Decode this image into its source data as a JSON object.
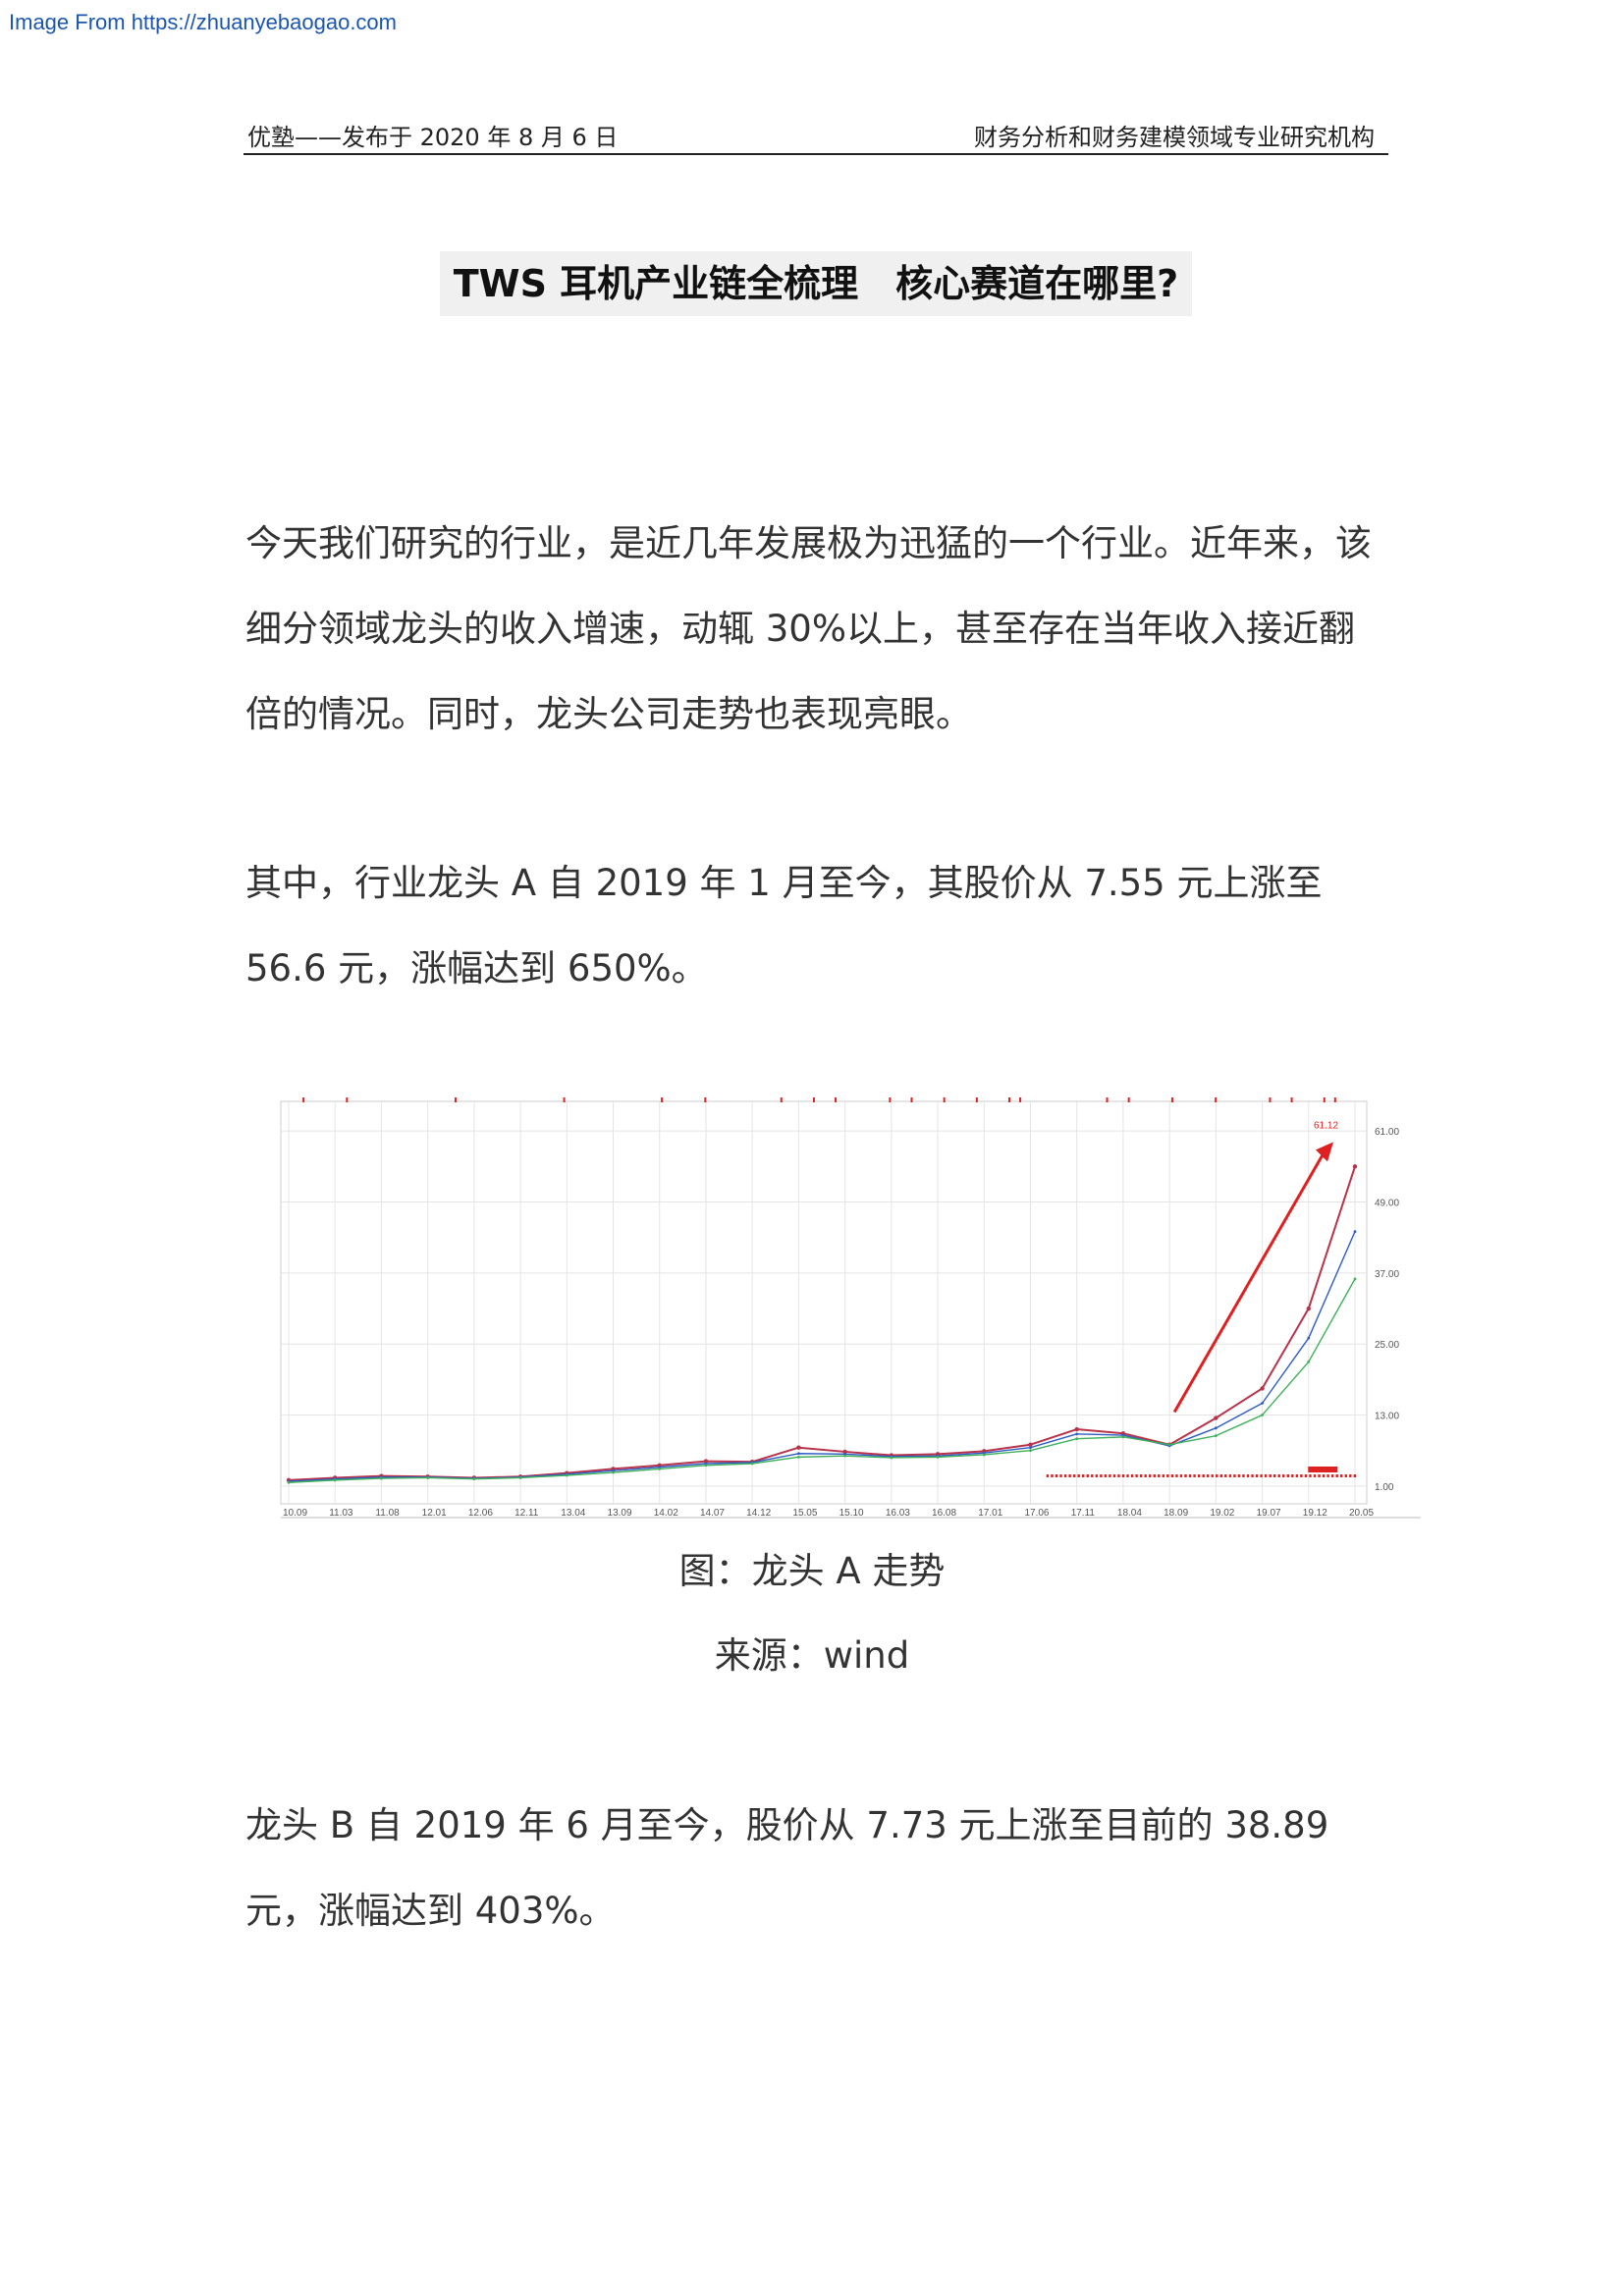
{
  "watermark": "Image From https://zhuanyebaogao.com",
  "header": {
    "left": "优塾——发布于 2020 年 8 月 6 日",
    "right": "财务分析和财务建模领域专业研究机构"
  },
  "title": "TWS 耳机产业链全梳理　核心赛道在哪里?",
  "paragraphs": {
    "p1": "今天我们研究的行业，是近几年发展极为迅猛的一个行业。近年来，该细分领域龙头的收入增速，动辄 30%以上，甚至存在当年收入接近翻倍的情况。同时，龙头公司走势也表现亮眼。",
    "p2": "其中，行业龙头 A 自 2019 年 1 月至今，其股价从 7.55 元上涨至 56.6 元，涨幅达到 650%。",
    "p3": "龙头 B 自 2019 年 6 月至今，股价从 7.73 元上涨至目前的 38.89 元，涨幅达到 403%。"
  },
  "figure": {
    "caption": "图：龙头 A 走势",
    "source": "来源：wind"
  },
  "chart_data": {
    "type": "line",
    "annotation": "61.12",
    "x_tick_labels": [
      "10.09",
      "11.03",
      "11.08",
      "12.01",
      "12.06",
      "12.11",
      "13.04",
      "13.09",
      "14.02",
      "14.07",
      "14.12",
      "15.05",
      "15.10",
      "16.03",
      "16.08",
      "17.01",
      "17.06",
      "17.11",
      "18.04",
      "18.09",
      "19.02",
      "19.07",
      "19.12",
      "20.05"
    ],
    "y_tick_labels": [
      "61.00",
      "49.00",
      "37.00",
      "25.00",
      "13.00",
      "1.00"
    ],
    "ylim": [
      -2,
      66
    ],
    "x": [
      "10.09",
      "11.03",
      "11.08",
      "12.01",
      "12.06",
      "12.11",
      "13.04",
      "13.09",
      "14.02",
      "14.07",
      "14.12",
      "15.05",
      "15.10",
      "16.03",
      "16.08",
      "17.01",
      "17.06",
      "17.11",
      "18.04",
      "18.09",
      "19.02",
      "19.07",
      "19.12",
      "20.05"
    ],
    "series": [
      {
        "values": [
          2.0,
          2.4,
          2.7,
          2.6,
          2.4,
          2.6,
          3.2,
          3.9,
          4.5,
          5.2,
          5.1,
          7.5,
          6.8,
          6.2,
          6.4,
          6.9,
          8.0,
          10.6,
          9.9,
          8.0,
          12.5,
          17.5,
          31.0,
          55.0
        ],
        "color": "#b8324a"
      },
      {
        "values": [
          1.8,
          2.2,
          2.5,
          2.5,
          2.3,
          2.5,
          3.0,
          3.6,
          4.2,
          4.8,
          5.0,
          6.5,
          6.4,
          6.0,
          6.1,
          6.6,
          7.5,
          9.8,
          9.6,
          7.8,
          10.8,
          15.0,
          26.0,
          44.0
        ],
        "color": "#2f5cc4"
      },
      {
        "values": [
          1.6,
          2.0,
          2.3,
          2.4,
          2.2,
          2.4,
          2.8,
          3.3,
          3.9,
          4.5,
          4.8,
          5.9,
          6.1,
          5.8,
          5.9,
          6.3,
          7.0,
          9.0,
          9.3,
          8.0,
          9.5,
          13.0,
          22.0,
          36.0
        ],
        "color": "#3fb05a"
      }
    ]
  }
}
